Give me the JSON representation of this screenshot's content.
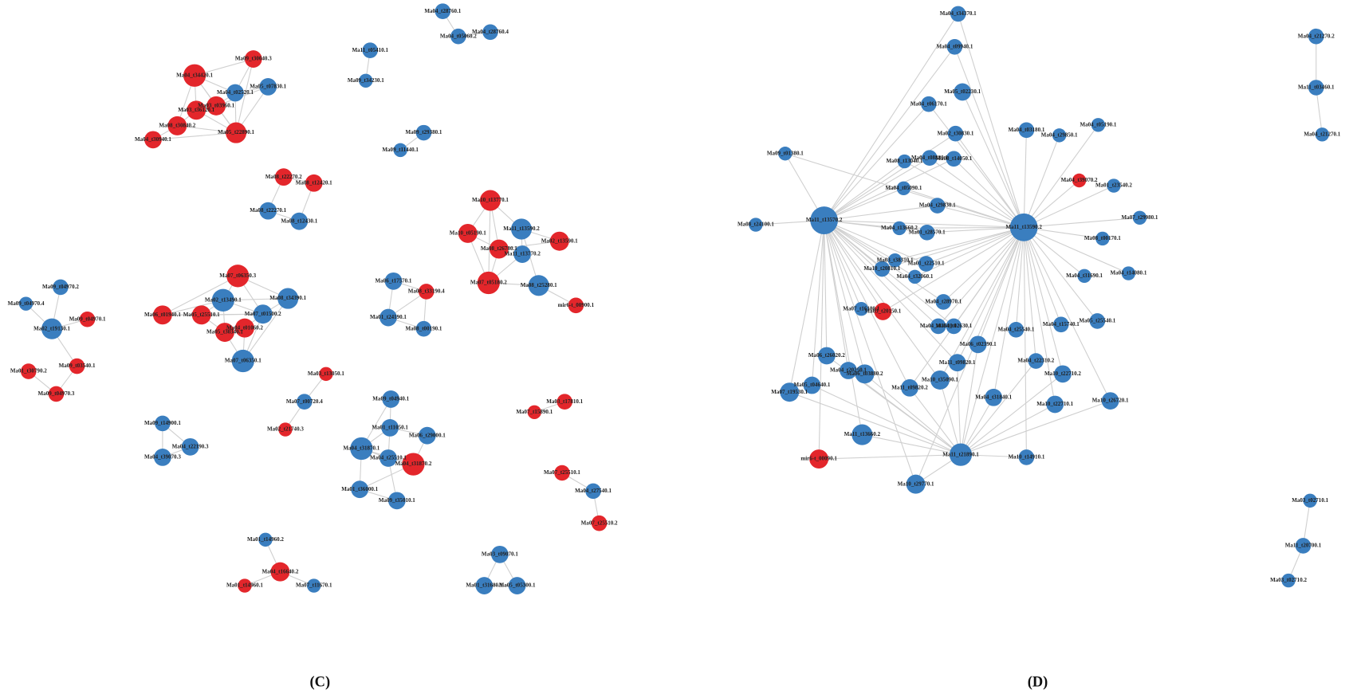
{
  "panels": [
    {
      "label": "(C)"
    },
    {
      "label": "(D)"
    }
  ],
  "colors": {
    "red": "#e3262b",
    "blue": "#3a7ebf"
  },
  "nodes": [
    {
      "label": "Ma04_t28760.1",
      "color": "blue"
    },
    {
      "label": "Ma04_t05060.2",
      "color": "blue"
    },
    {
      "label": "Ma04_t28760.4",
      "color": "blue"
    },
    {
      "label": "Ma11_t05410.1",
      "color": "blue"
    },
    {
      "label": "Ma09_t34230.1",
      "color": "blue"
    },
    {
      "label": "Ma09_t30040.3",
      "color": "red"
    },
    {
      "label": "Ma04_t34420.1",
      "color": "red"
    },
    {
      "label": "Ma05_t07830.1",
      "color": "blue"
    },
    {
      "label": "Ma04_t02520.1",
      "color": "blue"
    },
    {
      "label": "Ma03_t03960.1",
      "color": "red"
    },
    {
      "label": "Ma03_t36120.1",
      "color": "red"
    },
    {
      "label": "Ma08_t30840.2",
      "color": "red"
    },
    {
      "label": "Ma05_t22890.1",
      "color": "red"
    },
    {
      "label": "Ma04_t30940.1",
      "color": "red"
    },
    {
      "label": "Ma09_t29380.1",
      "color": "blue"
    },
    {
      "label": "Ma09_t11440.1",
      "color": "blue"
    },
    {
      "label": "Ma08_t22270.2",
      "color": "red"
    },
    {
      "label": "Ma08_t12420.1",
      "color": "red"
    },
    {
      "label": "Ma08_t22270.1",
      "color": "blue"
    },
    {
      "label": "Ma08_t12430.1",
      "color": "blue"
    },
    {
      "label": "Ma10_t13770.1",
      "color": "red"
    },
    {
      "label": "Ma10_t05190.1",
      "color": "red"
    },
    {
      "label": "Ma11_t13590.2",
      "color": "blue"
    },
    {
      "label": "Ma02_t13590.1",
      "color": "red"
    },
    {
      "label": "Ma08_t26780.1",
      "color": "red"
    },
    {
      "label": "Ma11_t13770.2",
      "color": "blue"
    },
    {
      "label": "Ma07_t05180.2",
      "color": "red"
    },
    {
      "label": "Ma08_t25280.1",
      "color": "blue"
    },
    {
      "label": "mir6-t_00900.1",
      "color": "red"
    },
    {
      "label": "Ma09_t04970.2",
      "color": "blue"
    },
    {
      "label": "Ma09_t04970.4",
      "color": "blue"
    },
    {
      "label": "Ma09_t04970.1",
      "color": "red"
    },
    {
      "label": "Ma02_t19130.1",
      "color": "blue"
    },
    {
      "label": "Ma09_t03540.1",
      "color": "red"
    },
    {
      "label": "Ma01_t30790.2",
      "color": "red"
    },
    {
      "label": "Ma09_t04970.3",
      "color": "red"
    },
    {
      "label": "Ma07_t06350.3",
      "color": "red"
    },
    {
      "label": "Ma02_t13490.1",
      "color": "blue"
    },
    {
      "label": "Ma08_t34390.1",
      "color": "blue"
    },
    {
      "label": "Ma06_t01940.1",
      "color": "red"
    },
    {
      "label": "Ma05_t25510.1",
      "color": "red"
    },
    {
      "label": "Ma07_t01500.2",
      "color": "blue"
    },
    {
      "label": "Ma04_t01060.2",
      "color": "red"
    },
    {
      "label": "Ma05_t30340.1",
      "color": "red"
    },
    {
      "label": "Ma07_t06350.1",
      "color": "blue"
    },
    {
      "label": "Ma06_t17570.1",
      "color": "blue"
    },
    {
      "label": "Ma08_t33190.4",
      "color": "red"
    },
    {
      "label": "Ma01_t24190.1",
      "color": "blue"
    },
    {
      "label": "Ma08_t00190.1",
      "color": "blue"
    },
    {
      "label": "Ma03_t13050.1",
      "color": "red"
    },
    {
      "label": "Ma07_t00720.4",
      "color": "blue"
    },
    {
      "label": "Ma02_t21740.3",
      "color": "red"
    },
    {
      "label": "Ma09_t04940.1",
      "color": "blue"
    },
    {
      "label": "Ma01_t11050.1",
      "color": "blue"
    },
    {
      "label": "Ma04_t31870.1",
      "color": "blue"
    },
    {
      "label": "Ma06_t29000.1",
      "color": "blue"
    },
    {
      "label": "Ma04_t25510.1",
      "color": "blue"
    },
    {
      "label": "Ma04_t31870.2",
      "color": "red"
    },
    {
      "label": "Ma01_t36000.1",
      "color": "blue"
    },
    {
      "label": "Ma09_t35010.1",
      "color": "blue"
    },
    {
      "label": "Ma09_t14900.1",
      "color": "blue"
    },
    {
      "label": "Ma04_t22190.3",
      "color": "blue"
    },
    {
      "label": "Ma04_t39070.3",
      "color": "blue"
    },
    {
      "label": "Ma03_t17810.1",
      "color": "red"
    },
    {
      "label": "Ma07_t15890.1",
      "color": "red"
    },
    {
      "label": "Ma07_t25510.1",
      "color": "red"
    },
    {
      "label": "Ma04_t27540.1",
      "color": "blue"
    },
    {
      "label": "Ma07_t25510.2",
      "color": "red"
    },
    {
      "label": "Ma01_t14960.2",
      "color": "blue"
    },
    {
      "label": "Ma04_t16640.2",
      "color": "red"
    },
    {
      "label": "Ma01_t14960.1",
      "color": "red"
    },
    {
      "label": "Ma07_t11670.1",
      "color": "blue"
    },
    {
      "label": "Ma03_t09070.1",
      "color": "blue"
    },
    {
      "label": "Ma01_t31680.1",
      "color": "blue"
    },
    {
      "label": "Ma05_t05300.1",
      "color": "blue"
    },
    {
      "label": "Ma04_t34370.1",
      "color": "blue"
    },
    {
      "label": "Ma04_t09940.1",
      "color": "blue"
    },
    {
      "label": "Ma05_t02230.1",
      "color": "blue"
    },
    {
      "label": "Ma04_t06170.1",
      "color": "blue"
    },
    {
      "label": "Ma02_t30830.1",
      "color": "blue"
    },
    {
      "label": "Ma04_t03180.1",
      "color": "blue"
    },
    {
      "label": "Ma04_t29850.1",
      "color": "blue"
    },
    {
      "label": "Ma04_t05190.1",
      "color": "blue"
    },
    {
      "label": "Ma09_t01380.1",
      "color": "blue"
    },
    {
      "label": "Ma08_t13040.1",
      "color": "blue"
    },
    {
      "label": "Ma04_t08880.1",
      "color": "blue"
    },
    {
      "label": "Ma08_t14050.1",
      "color": "blue"
    },
    {
      "label": "Ma04_t39070.2",
      "color": "red"
    },
    {
      "label": "Ma01_t23540.2",
      "color": "blue"
    },
    {
      "label": "Ma04_t05090.1",
      "color": "blue"
    },
    {
      "label": "Ma04_t29830.1",
      "color": "blue"
    },
    {
      "label": "Ma11_t13570.2",
      "color": "blue"
    },
    {
      "label": "Ma11_t13590.2",
      "color": "blue"
    },
    {
      "label": "Ma08_t24100.1",
      "color": "blue"
    },
    {
      "label": "Ma07_t29980.1",
      "color": "blue"
    },
    {
      "label": "Ma04_t13660.2",
      "color": "blue"
    },
    {
      "label": "Ma01_t28570.1",
      "color": "blue"
    },
    {
      "label": "Ma03_t38310.1",
      "color": "blue"
    },
    {
      "label": "Ma01_t22510.1",
      "color": "blue"
    },
    {
      "label": "Ma04_t32060.1",
      "color": "blue"
    },
    {
      "label": "Ma10_t20810.1",
      "color": "blue"
    },
    {
      "label": "Ma08_t00170.1",
      "color": "blue"
    },
    {
      "label": "Ma04_t31690.1",
      "color": "blue"
    },
    {
      "label": "Ma04_t14080.1",
      "color": "blue"
    },
    {
      "label": "Ma04_t28970.1",
      "color": "blue"
    },
    {
      "label": "Ma07_t16180.1",
      "color": "blue"
    },
    {
      "label": "Ma03_t20150.1",
      "color": "red"
    },
    {
      "label": "Ma04_t03540.1",
      "color": "blue"
    },
    {
      "label": "Ma04_t02630.1",
      "color": "blue"
    },
    {
      "label": "Ma04_t25540.1",
      "color": "blue"
    },
    {
      "label": "Ma04_t15740.1",
      "color": "blue"
    },
    {
      "label": "Ma05_t25540.1",
      "color": "blue"
    },
    {
      "label": "Ma06_t02390.1",
      "color": "blue"
    },
    {
      "label": "Ma06_t26020.2",
      "color": "blue"
    },
    {
      "label": "Ma04_t20250.1",
      "color": "blue"
    },
    {
      "label": "Ma06_t03880.2",
      "color": "blue"
    },
    {
      "label": "Ma11_t09820.1",
      "color": "blue"
    },
    {
      "label": "Ma04_t22310.2",
      "color": "blue"
    },
    {
      "label": "Ma10_t22710.2",
      "color": "blue"
    },
    {
      "label": "Ma10_t35090.1",
      "color": "blue"
    },
    {
      "label": "Ma07_t19530.1",
      "color": "blue"
    },
    {
      "label": "Ma05_t04640.1",
      "color": "blue"
    },
    {
      "label": "Ma11_t09820.2",
      "color": "blue"
    },
    {
      "label": "Ma04_t31840.1",
      "color": "blue"
    },
    {
      "label": "Ma10_t22710.1",
      "color": "blue"
    },
    {
      "label": "Ma10_t26720.1",
      "color": "blue"
    },
    {
      "label": "Ma11_t13660.2",
      "color": "blue"
    },
    {
      "label": "Ma11_t21890.1",
      "color": "blue"
    },
    {
      "label": "Ma10_t14910.1",
      "color": "blue"
    },
    {
      "label": "mir6-t_00090.1",
      "color": "red"
    },
    {
      "label": "Ma10_t29770.1",
      "color": "blue"
    },
    {
      "label": "Ma04_t21270.2",
      "color": "blue"
    },
    {
      "label": "Ma11_t03460.1",
      "color": "blue"
    },
    {
      "label": "Ma04_t21270.1",
      "color": "blue"
    },
    {
      "label": "Ma03_t02710.1",
      "color": "blue"
    },
    {
      "label": "Ma11_t20700.1",
      "color": "blue"
    },
    {
      "label": "Ma03_t02710.2",
      "color": "blue"
    }
  ]
}
